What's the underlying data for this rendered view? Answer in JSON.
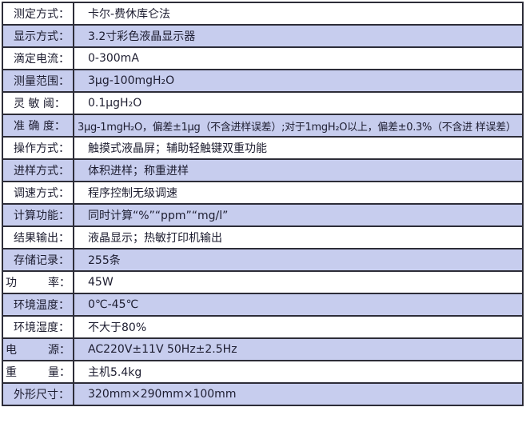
{
  "colors": {
    "row_alt_background": "#c7cdee",
    "row_base_background": "#ffffff",
    "border": "#2d2d38",
    "text": "#1d1d30"
  },
  "table": {
    "rows": [
      {
        "label": "测定方式：",
        "value": "卡尔-费休库仑法"
      },
      {
        "label": "显示方式：",
        "value": "3.2寸彩色液晶显示器"
      },
      {
        "label": "滴定电流：",
        "value": "0-300mA"
      },
      {
        "label": "测量范围：",
        "value": "3μg-100mgH₂O"
      },
      {
        "label": "灵 敏 阈：",
        "value": "0.1μgH₂O"
      },
      {
        "label": "准 确 度：",
        "value": "3μg-1mgH₂O，偏差±1μg（不含进样误差）;对于1mgH₂O以上，偏差±0.3%（不含进 样误差）"
      },
      {
        "label": "操作方式：",
        "value": "触摸式液晶屏；辅助轻触键双重功能"
      },
      {
        "label": "进样方式：",
        "value": "体积进样；称重进样"
      },
      {
        "label": "调速方式：",
        "value": "程序控制无级调速"
      },
      {
        "label": "计算功能：",
        "value": "同时计算“%”“ppm”“mg/l”"
      },
      {
        "label": "结果输出：",
        "value": "液晶显示；热敏打印机输出"
      },
      {
        "label": "存储记录：",
        "value": "255条"
      },
      {
        "label": "功",
        "label_r": "率：",
        "value": "45W"
      },
      {
        "label": "环境温度：",
        "value": "0℃-45℃"
      },
      {
        "label": "环境湿度：",
        "value": "不大于80%"
      },
      {
        "label": "电",
        "label_r": "源：",
        "value": "AC220V±11V 50Hz±2.5Hz"
      },
      {
        "label": "重",
        "label_r": "量：",
        "value": "主机5.4kg"
      },
      {
        "label": "外形尺寸：",
        "value": "320mm×290mm×100mm"
      }
    ]
  }
}
